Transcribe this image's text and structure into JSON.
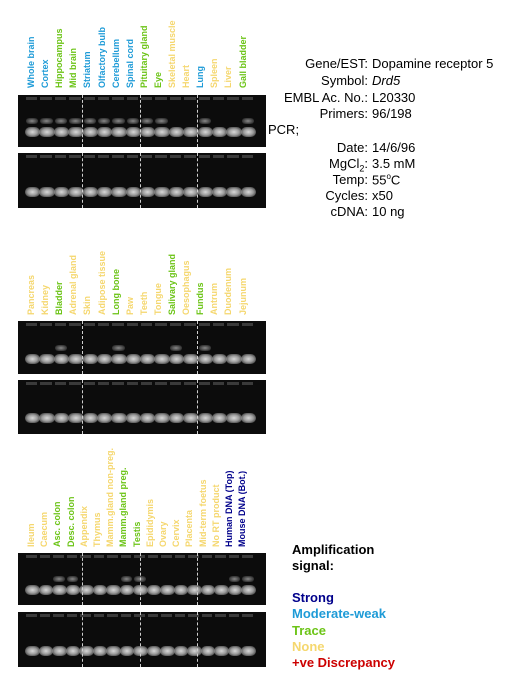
{
  "colors": {
    "strong": "#00008b",
    "moderate_weak": "#1e9bd7",
    "trace": "#6cc417",
    "none": "#f5d76e",
    "discrepancy": "#cc0000"
  },
  "panels": [
    {
      "lanes": [
        {
          "label": "Whole brain",
          "level": "moderate_weak"
        },
        {
          "label": "Cortex",
          "level": "moderate_weak"
        },
        {
          "label": "Hippocampus",
          "level": "trace"
        },
        {
          "label": "Mid brain",
          "level": "trace"
        },
        {
          "label": "Striatum",
          "level": "moderate_weak"
        },
        {
          "label": "Olfactory bulb",
          "level": "moderate_weak"
        },
        {
          "label": "Cerebellum",
          "level": "moderate_weak"
        },
        {
          "label": "Spinal cord",
          "level": "moderate_weak"
        },
        {
          "label": "Pituitary gland",
          "level": "trace"
        },
        {
          "label": "Eye",
          "level": "trace"
        },
        {
          "label": "Skeletal muscle",
          "level": "none"
        },
        {
          "label": "Heart",
          "level": "none"
        },
        {
          "label": "Lung",
          "level": "moderate_weak"
        },
        {
          "label": "Spleen",
          "level": "none"
        },
        {
          "label": "Liver",
          "level": "none"
        },
        {
          "label": "Gall bladder",
          "level": "trace"
        }
      ]
    },
    {
      "lanes": [
        {
          "label": "Pancreas",
          "level": "none"
        },
        {
          "label": "Kidney",
          "level": "none"
        },
        {
          "label": "Bladder",
          "level": "trace"
        },
        {
          "label": "Adrenal gland",
          "level": "none"
        },
        {
          "label": "Skin",
          "level": "none"
        },
        {
          "label": "Adipose tissue",
          "level": "none"
        },
        {
          "label": "Long bone",
          "level": "trace"
        },
        {
          "label": "Paw",
          "level": "none"
        },
        {
          "label": "Teeth",
          "level": "none"
        },
        {
          "label": "Tongue",
          "level": "none"
        },
        {
          "label": "Salivary gland",
          "level": "trace"
        },
        {
          "label": "Oesophagus",
          "level": "none"
        },
        {
          "label": "Fundus",
          "level": "trace"
        },
        {
          "label": "Antrum",
          "level": "none"
        },
        {
          "label": "Duodenum",
          "level": "none"
        },
        {
          "label": "Jejunum",
          "level": "none"
        }
      ]
    },
    {
      "lanes": [
        {
          "label": "Ileum",
          "level": "none"
        },
        {
          "label": "Caecum",
          "level": "none"
        },
        {
          "label": "Asc. colon",
          "level": "trace"
        },
        {
          "label": "Desc. colon",
          "level": "trace"
        },
        {
          "label": "Appendix",
          "level": "none"
        },
        {
          "label": "Thymus",
          "level": "none"
        },
        {
          "label": "Mamm.gland non-preg.",
          "level": "none"
        },
        {
          "label": "Mamm.gland preg.",
          "level": "trace"
        },
        {
          "label": "Testis",
          "level": "trace"
        },
        {
          "label": "Epididymis",
          "level": "none"
        },
        {
          "label": "Ovary",
          "level": "none"
        },
        {
          "label": "Cervix",
          "level": "none"
        },
        {
          "label": "Placenta",
          "level": "none"
        },
        {
          "label": "Mid-term foetus",
          "level": "none"
        },
        {
          "label": "No RT product",
          "level": "none"
        },
        {
          "label": "Human DNA (Top)",
          "level": "strong"
        },
        {
          "label": "Mouse DNA (Bot.)",
          "level": "strong"
        }
      ]
    }
  ],
  "info": [
    {
      "key": "Gene/EST:",
      "value": "Dopamine receptor 5"
    },
    {
      "key": "Symbol:",
      "value": "Drd5"
    },
    {
      "key": "EMBL Ac. No.:",
      "value": "L20330"
    },
    {
      "key": "Primers:",
      "value": "96/198"
    }
  ],
  "pcr_heading": "PCR;",
  "pcr": [
    {
      "key": "Date:",
      "value": "14/6/96"
    },
    {
      "key": "MgCl2:",
      "value": "3.5 mM"
    },
    {
      "key": "Temp:",
      "value": "55oC"
    },
    {
      "key": "Cycles:",
      "value": "x50"
    },
    {
      "key": "cDNA:",
      "value": "10 ng"
    }
  ],
  "legend": {
    "title_line1": "Amplification",
    "title_line2": "signal:",
    "items": [
      {
        "label": "Strong",
        "level": "strong"
      },
      {
        "label": "Moderate-weak",
        "level": "moderate_weak"
      },
      {
        "label": "Trace",
        "level": "trace"
      },
      {
        "label": "None",
        "level": "none"
      },
      {
        "label": "+ve Discrepancy",
        "level": "discrepancy"
      }
    ]
  }
}
